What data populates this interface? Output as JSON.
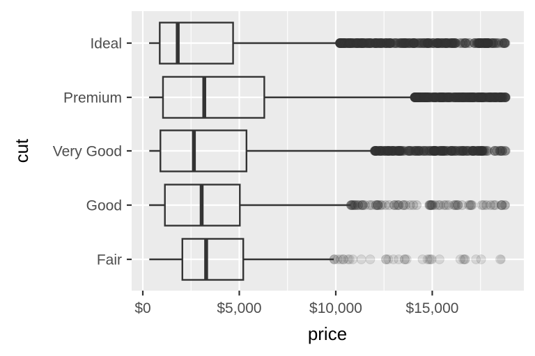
{
  "chart_data": {
    "type": "boxplot",
    "orientation": "horizontal",
    "title": "",
    "xlabel": "price",
    "ylabel": "cut",
    "xlim": [
      -600,
      19400
    ],
    "x_ticks": [
      0,
      5000,
      10000,
      15000
    ],
    "x_tick_labels": [
      "$0",
      "$5,000",
      "$10,000",
      "$15,000"
    ],
    "categories": [
      "Ideal",
      "Premium",
      "Very Good",
      "Good",
      "Fair"
    ],
    "grid": true,
    "legend": null,
    "series": [
      {
        "name": "Ideal",
        "min": 326,
        "q1": 878,
        "median": 1810,
        "q3": 4678,
        "whisker_high": 10220,
        "outliers_range": [
          10220,
          18806
        ],
        "outlier_density": "very dense"
      },
      {
        "name": "Premium",
        "min": 326,
        "q1": 1046,
        "median": 3185,
        "q3": 6296,
        "whisker_high": 14100,
        "outliers_range": [
          14100,
          18823
        ],
        "outlier_density": "very dense"
      },
      {
        "name": "Very Good",
        "min": 336,
        "q1": 912,
        "median": 2648,
        "q3": 5373,
        "whisker_high": 12000,
        "outliers_range": [
          12000,
          18818
        ],
        "outlier_density": "dense"
      },
      {
        "name": "Good",
        "min": 327,
        "q1": 1145,
        "median": 3050,
        "q3": 5028,
        "whisker_high": 10780,
        "outliers_range": [
          10780,
          18788
        ],
        "outlier_density": "moderate"
      },
      {
        "name": "Fair",
        "min": 337,
        "q1": 2050,
        "median": 3282,
        "q3": 5206,
        "whisker_high": 9900,
        "outliers_range": [
          9900,
          18574
        ],
        "outlier_density": "sparse"
      }
    ]
  },
  "colors": {
    "panel_bg": "#ebebeb",
    "grid": "#ffffff",
    "box_stroke": "#333333",
    "tick_label": "#4d4d4d",
    "axis_title": "#000000"
  }
}
